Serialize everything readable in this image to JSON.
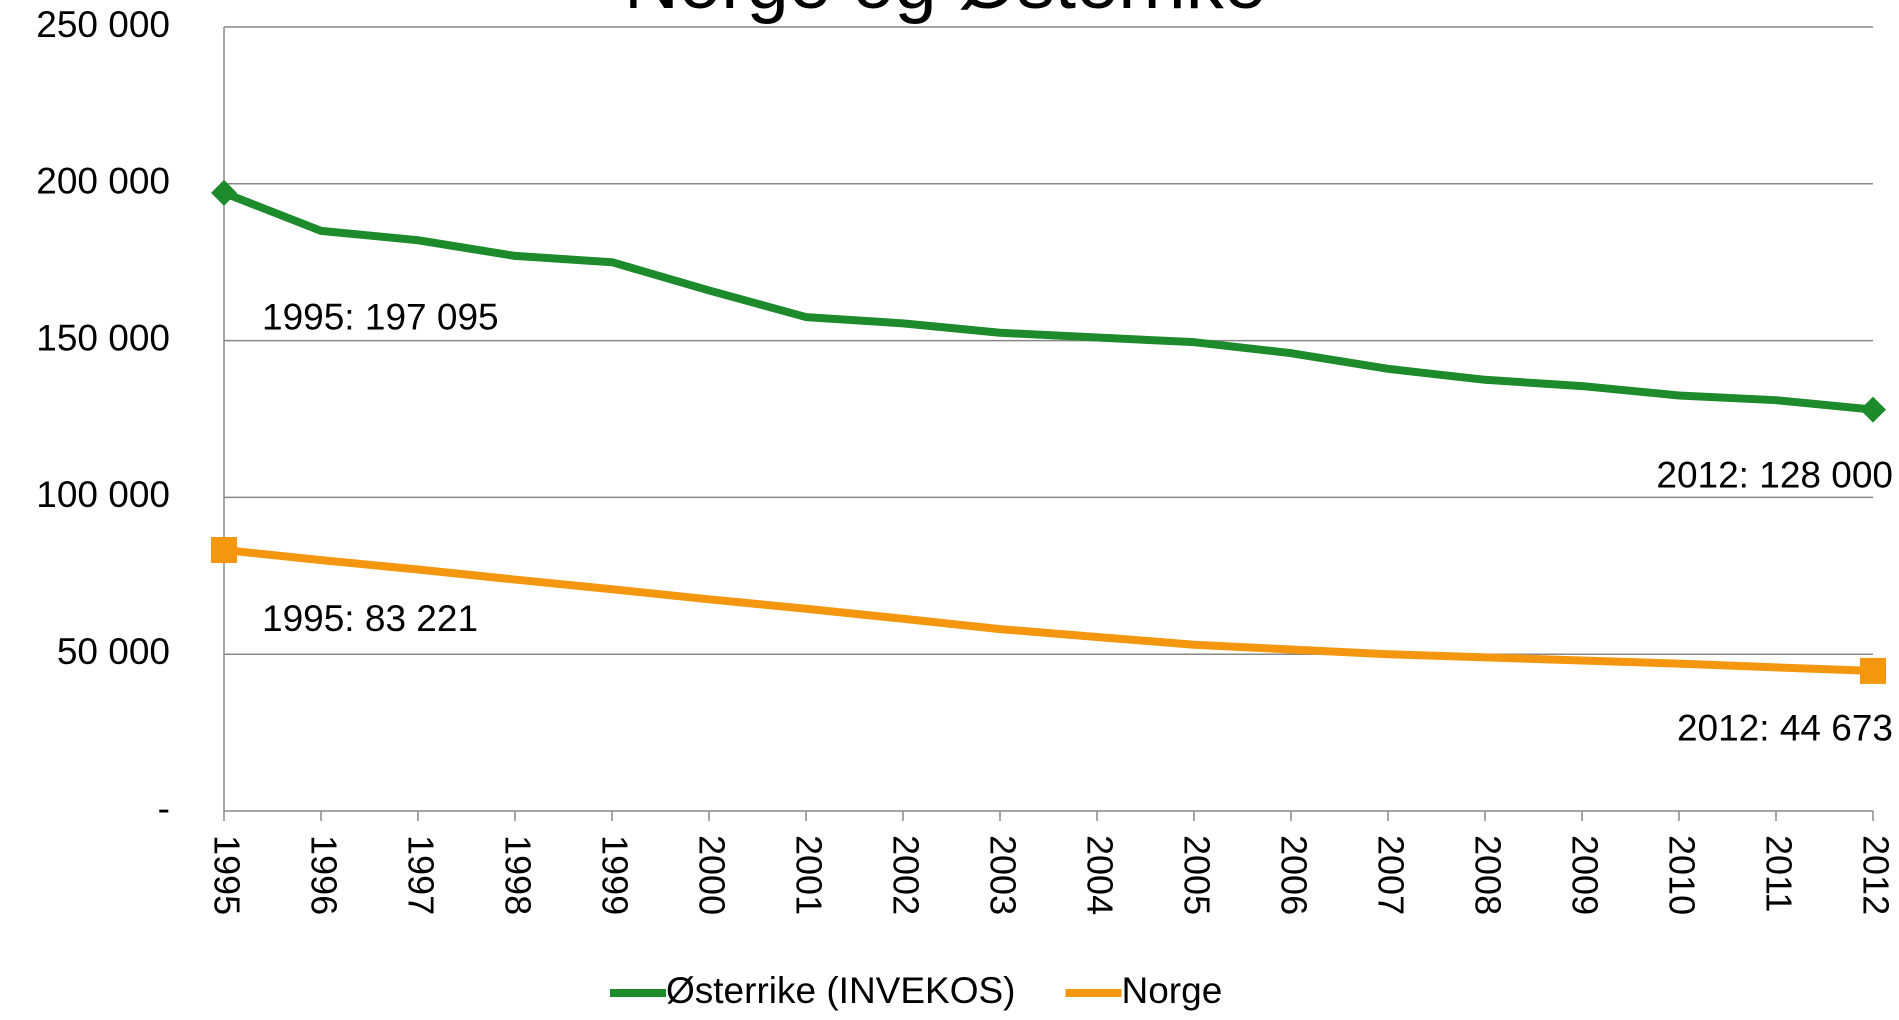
{
  "chart_data": {
    "type": "line",
    "title": "Norge og Østerrike",
    "categories": [
      "1995",
      "1996",
      "1997",
      "1998",
      "1999",
      "2000",
      "2001",
      "2002",
      "2003",
      "2004",
      "2005",
      "2006",
      "2007",
      "2008",
      "2009",
      "2010",
      "2011",
      "2012"
    ],
    "series": [
      {
        "name": "Østerrike (INVEKOS)",
        "color": "#1d8a2b",
        "marker": "diamond",
        "values": [
          197095,
          185000,
          182000,
          177000,
          175000,
          166000,
          157500,
          155500,
          152500,
          151000,
          149500,
          146000,
          141000,
          137500,
          135500,
          132500,
          131000,
          128000
        ],
        "value_labels": [
          "1995: 197 095",
          null,
          null,
          null,
          null,
          null,
          null,
          null,
          null,
          null,
          null,
          null,
          null,
          null,
          null,
          null,
          null,
          "2012: 128 000"
        ]
      },
      {
        "name": "Norge",
        "color": "#f5960f",
        "marker": "square",
        "values": [
          83221,
          80000,
          77000,
          73800,
          70700,
          67500,
          64500,
          61300,
          58000,
          55500,
          53000,
          51500,
          50000,
          49000,
          48000,
          47000,
          45800,
          44673
        ],
        "value_labels": [
          "1995: 83 221",
          null,
          null,
          null,
          null,
          null,
          null,
          null,
          null,
          null,
          null,
          null,
          null,
          null,
          null,
          null,
          null,
          "2012: 44 673"
        ]
      }
    ],
    "ylim": [
      0,
      250000
    ],
    "yticks": [
      {
        "value": 0,
        "label": "-"
      },
      {
        "value": 50000,
        "label": "50 000"
      },
      {
        "value": 100000,
        "label": "100 000"
      },
      {
        "value": 150000,
        "label": "150 000"
      },
      {
        "value": 200000,
        "label": "200 000"
      },
      {
        "value": 250000,
        "label": "250 000"
      }
    ],
    "grid": true,
    "legend": "bottom"
  }
}
